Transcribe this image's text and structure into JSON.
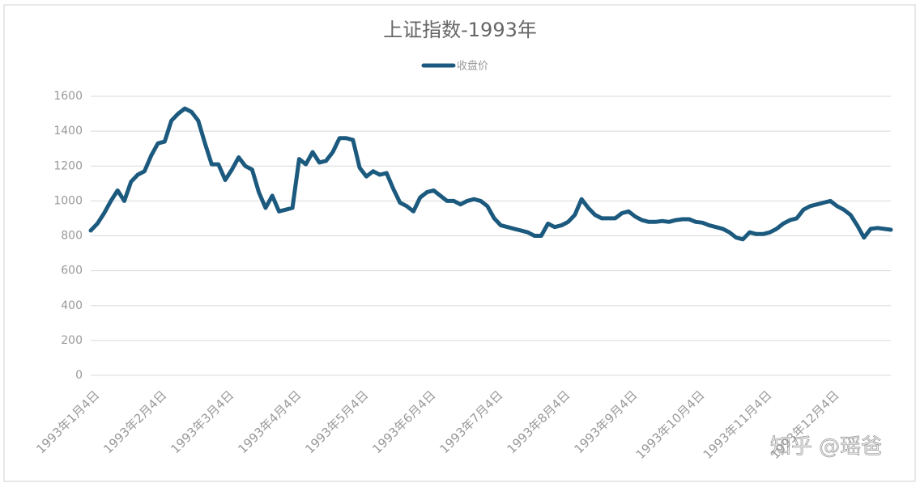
{
  "chart_data": {
    "type": "line",
    "title": "上证指数-1993年",
    "watermark": "知乎 @瑶爸",
    "legend": "top",
    "categories": [
      null,
      "1993年1月4日",
      null,
      null,
      null,
      null,
      null,
      null,
      null,
      null,
      null,
      "1993年2月4日",
      null,
      null,
      null,
      null,
      null,
      null,
      null,
      null,
      null,
      "1993年3月4日",
      null,
      null,
      null,
      null,
      null,
      null,
      null,
      null,
      null,
      "1993年4月4日",
      null,
      null,
      null,
      null,
      null,
      null,
      null,
      null,
      null,
      "1993年5月4日",
      null,
      null,
      null,
      null,
      null,
      null,
      null,
      null,
      null,
      "1993年6月4日",
      null,
      null,
      null,
      null,
      null,
      null,
      null,
      null,
      null,
      "1993年7月4日",
      null,
      null,
      null,
      null,
      null,
      null,
      null,
      null,
      null,
      "1993年8月4日",
      null,
      null,
      null,
      null,
      null,
      null,
      null,
      null,
      null,
      "1993年9月4日",
      null,
      null,
      null,
      null,
      null,
      null,
      null,
      null,
      null,
      "1993年10月4日",
      null,
      null,
      null,
      null,
      null,
      null,
      null,
      null,
      null,
      "1993年11月4日",
      null,
      null,
      null,
      null,
      null,
      null,
      null,
      null,
      null,
      "1993年12月4日",
      null,
      null,
      null,
      null,
      null,
      null,
      null,
      null
    ],
    "series": [
      {
        "name": "收盘价",
        "color": "#1b5a7e",
        "values": [
          830,
          870,
          930,
          1000,
          1060,
          1000,
          1110,
          1150,
          1170,
          1260,
          1330,
          1340,
          1460,
          1500,
          1530,
          1510,
          1460,
          1330,
          1210,
          1210,
          1120,
          1180,
          1250,
          1200,
          1180,
          1050,
          960,
          1030,
          940,
          950,
          960,
          1240,
          1210,
          1280,
          1220,
          1230,
          1280,
          1360,
          1360,
          1350,
          1190,
          1140,
          1170,
          1150,
          1160,
          1070,
          990,
          970,
          940,
          1020,
          1050,
          1060,
          1030,
          1000,
          1000,
          980,
          1000,
          1010,
          1000,
          970,
          900,
          860,
          850,
          840,
          830,
          820,
          800,
          800,
          870,
          850,
          860,
          880,
          920,
          1010,
          960,
          920,
          900,
          900,
          900,
          930,
          940,
          910,
          890,
          880,
          880,
          885,
          880,
          890,
          895,
          895,
          880,
          875,
          860,
          850,
          840,
          820,
          790,
          780,
          820,
          810,
          810,
          820,
          840,
          870,
          890,
          900,
          950,
          970,
          980,
          990,
          1000,
          970,
          950,
          920,
          860,
          790,
          840,
          845,
          840,
          835
        ]
      }
    ],
    "ylim": [
      0,
      1600
    ],
    "yticks": [
      0,
      200,
      400,
      600,
      800,
      1000,
      1200,
      1400,
      1600
    ],
    "grid": true
  }
}
